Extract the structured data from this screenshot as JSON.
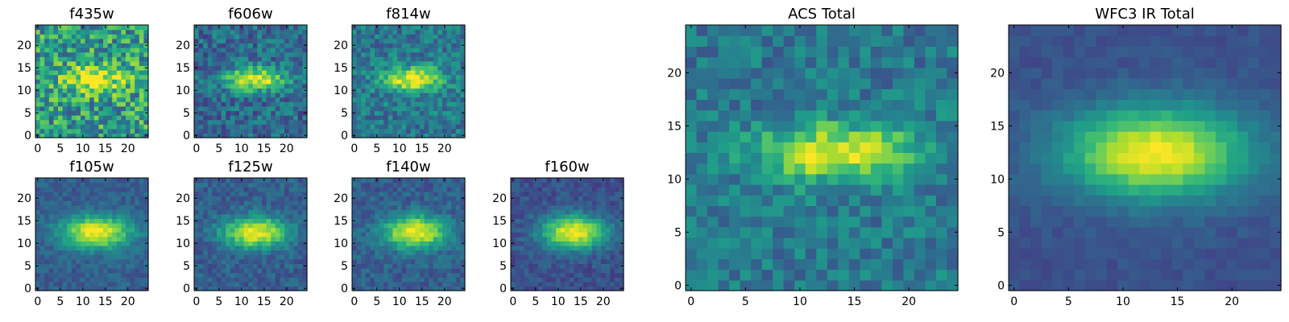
{
  "chart_data": [
    {
      "type": "heatmap",
      "title": "f435w",
      "grid": "25x25",
      "colormap": "viridis",
      "xticks": [
        "0",
        "5",
        "10",
        "15",
        "20"
      ],
      "yticks": [
        "0",
        "5",
        "10",
        "15",
        "20"
      ],
      "xlim": [
        0,
        24
      ],
      "ylim": [
        0,
        24
      ],
      "source_peak": [
        12.5,
        12.5
      ],
      "source_spread": [
        5.0,
        2.2
      ],
      "noise": 0.55,
      "background": 0.55,
      "grid_lines": false
    },
    {
      "type": "heatmap",
      "title": "f606w",
      "grid": "25x25",
      "colormap": "viridis",
      "xticks": [
        "0",
        "5",
        "10",
        "15",
        "20"
      ],
      "yticks": [
        "0",
        "5",
        "10",
        "15",
        "20"
      ],
      "xlim": [
        0,
        24
      ],
      "ylim": [
        0,
        24
      ],
      "source_peak": [
        13,
        12.5
      ],
      "source_spread": [
        4.5,
        1.8
      ],
      "noise": 0.35,
      "background": 0.35,
      "grid_lines": false
    },
    {
      "type": "heatmap",
      "title": "f814w",
      "grid": "25x25",
      "colormap": "viridis",
      "xticks": [
        "0",
        "5",
        "10",
        "15",
        "20"
      ],
      "yticks": [
        "0",
        "5",
        "10",
        "15",
        "20"
      ],
      "xlim": [
        0,
        24
      ],
      "ylim": [
        0,
        24
      ],
      "source_peak": [
        13,
        12.5
      ],
      "source_spread": [
        4.5,
        1.9
      ],
      "noise": 0.32,
      "background": 0.4,
      "grid_lines": false
    },
    {
      "type": "heatmap",
      "title": "f105w",
      "grid": "25x25",
      "colormap": "viridis",
      "xticks": [
        "0",
        "5",
        "10",
        "15",
        "20"
      ],
      "yticks": [
        "0",
        "5",
        "10",
        "15",
        "20"
      ],
      "xlim": [
        0,
        24
      ],
      "ylim": [
        0,
        24
      ],
      "source_peak": [
        13,
        12.5
      ],
      "source_spread": [
        5.5,
        2.6
      ],
      "noise": 0.16,
      "background": 0.3,
      "grid_lines": false
    },
    {
      "type": "heatmap",
      "title": "f125w",
      "grid": "25x25",
      "colormap": "viridis",
      "xticks": [
        "0",
        "5",
        "10",
        "15",
        "20"
      ],
      "yticks": [
        "0",
        "5",
        "10",
        "15",
        "20"
      ],
      "xlim": [
        0,
        24
      ],
      "ylim": [
        0,
        24
      ],
      "source_peak": [
        13,
        12.5
      ],
      "source_spread": [
        5.0,
        2.4
      ],
      "noise": 0.2,
      "background": 0.3,
      "grid_lines": false
    },
    {
      "type": "heatmap",
      "title": "f140w",
      "grid": "25x25",
      "colormap": "viridis",
      "xticks": [
        "0",
        "5",
        "10",
        "15",
        "20"
      ],
      "yticks": [
        "0",
        "5",
        "10",
        "15",
        "20"
      ],
      "xlim": [
        0,
        24
      ],
      "ylim": [
        0,
        24
      ],
      "source_peak": [
        13.5,
        12.5
      ],
      "source_spread": [
        5.0,
        2.6
      ],
      "noise": 0.2,
      "background": 0.3,
      "grid_lines": false
    },
    {
      "type": "heatmap",
      "title": "f160w",
      "grid": "25x25",
      "colormap": "viridis",
      "xticks": [
        "0",
        "5",
        "10",
        "15",
        "20"
      ],
      "yticks": [
        "0",
        "5",
        "10",
        "15",
        "20"
      ],
      "xlim": [
        0,
        24
      ],
      "ylim": [
        0,
        24
      ],
      "source_peak": [
        13.5,
        12.5
      ],
      "source_spread": [
        5.0,
        2.6
      ],
      "noise": 0.16,
      "background": 0.25,
      "grid_lines": false
    },
    {
      "type": "heatmap",
      "title": "ACS Total",
      "grid": "25x25",
      "colormap": "viridis",
      "xticks": [
        "0",
        "5",
        "10",
        "15",
        "20"
      ],
      "yticks": [
        "0",
        "5",
        "10",
        "15",
        "20"
      ],
      "xlim": [
        0,
        24
      ],
      "ylim": [
        0,
        24
      ],
      "source_peak": [
        13.5,
        12.5
      ],
      "source_spread": [
        5.0,
        1.9
      ],
      "noise": 0.28,
      "background": 0.4,
      "grid_lines": false
    },
    {
      "type": "heatmap",
      "title": "WFC3 IR Total",
      "grid": "25x25",
      "colormap": "viridis",
      "xticks": [
        "0",
        "5",
        "10",
        "15",
        "20"
      ],
      "yticks": [
        "0",
        "5",
        "10",
        "15",
        "20"
      ],
      "xlim": [
        0,
        24
      ],
      "ylim": [
        0,
        24
      ],
      "source_peak": [
        13,
        12.5
      ],
      "source_spread": [
        6.0,
        3.0
      ],
      "noise": 0.08,
      "background": 0.25,
      "grid_lines": false
    }
  ]
}
